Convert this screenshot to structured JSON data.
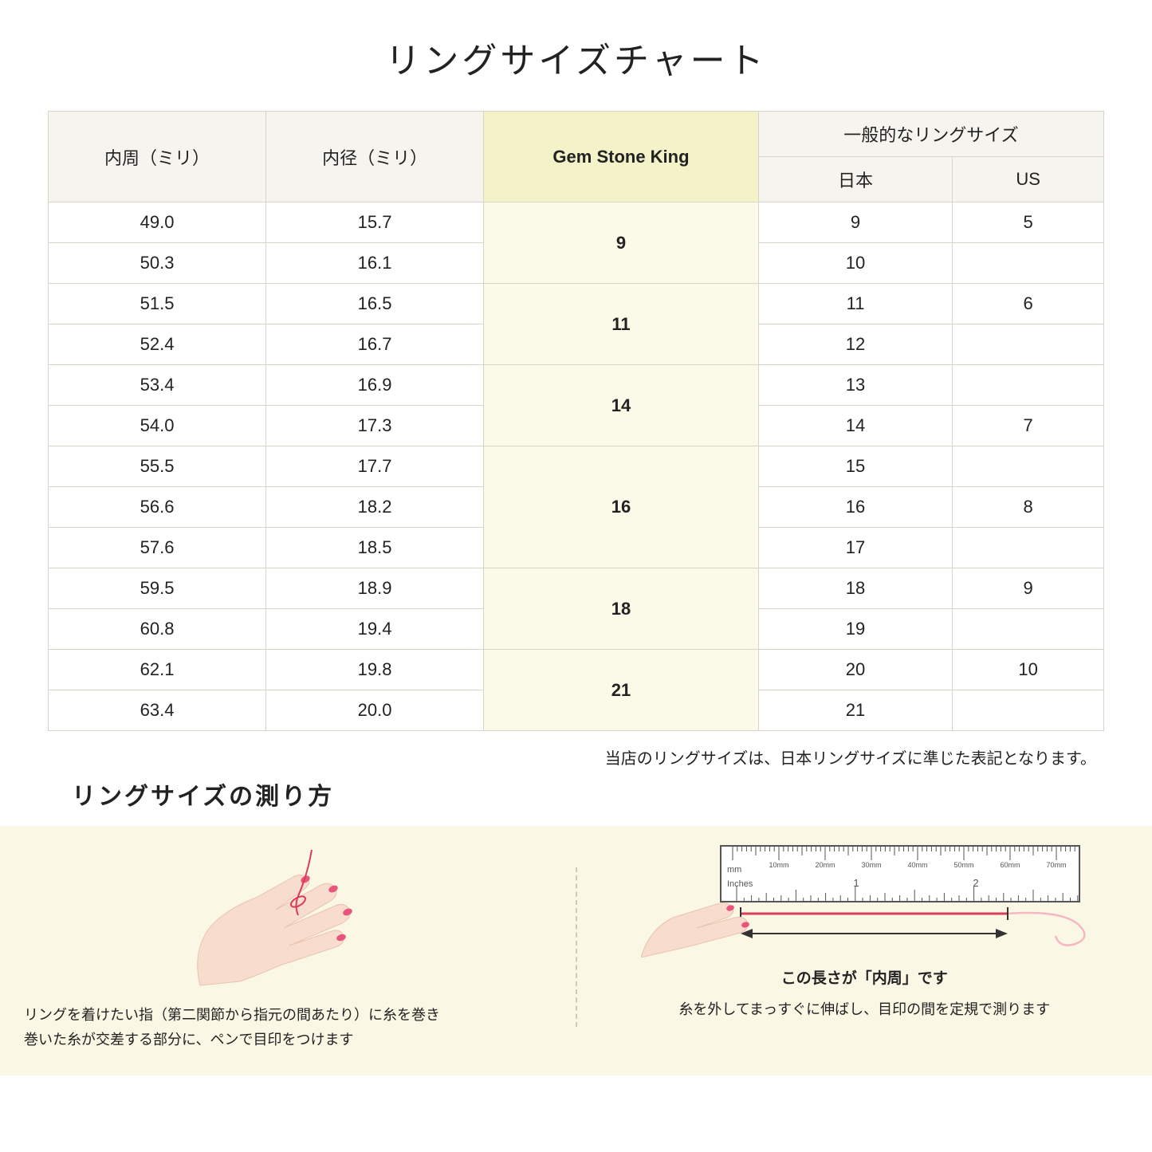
{
  "title": "リングサイズチャート",
  "headers": {
    "col1": "内周（ミリ）",
    "col2": "内径（ミリ）",
    "col3": "Gem Stone King",
    "col4_group": "一般的なリングサイズ",
    "col4a": "日本",
    "col4b": "US"
  },
  "rows": [
    {
      "c": "49.0",
      "d": "15.7",
      "g": "9",
      "gspan": 2,
      "j": "9",
      "u": "5"
    },
    {
      "c": "50.3",
      "d": "16.1",
      "j": "10",
      "u": ""
    },
    {
      "c": "51.5",
      "d": "16.5",
      "g": "11",
      "gspan": 2,
      "j": "11",
      "u": "6"
    },
    {
      "c": "52.4",
      "d": "16.7",
      "j": "12",
      "u": ""
    },
    {
      "c": "53.4",
      "d": "16.9",
      "g": "14",
      "gspan": 2,
      "j": "13",
      "u": ""
    },
    {
      "c": "54.0",
      "d": "17.3",
      "j": "14",
      "u": "7"
    },
    {
      "c": "55.5",
      "d": "17.7",
      "g": "16",
      "gspan": 3,
      "j": "15",
      "u": ""
    },
    {
      "c": "56.6",
      "d": "18.2",
      "j": "16",
      "u": "8"
    },
    {
      "c": "57.6",
      "d": "18.5",
      "j": "17",
      "u": ""
    },
    {
      "c": "59.5",
      "d": "18.9",
      "g": "18",
      "gspan": 2,
      "j": "18",
      "u": "9"
    },
    {
      "c": "60.8",
      "d": "19.4",
      "j": "19",
      "u": ""
    },
    {
      "c": "62.1",
      "d": "19.8",
      "g": "21",
      "gspan": 2,
      "j": "20",
      "u": "10"
    },
    {
      "c": "63.4",
      "d": "20.0",
      "j": "21",
      "u": ""
    }
  ],
  "note": "当店のリングサイズは、日本リングサイズに準じた表記となります。",
  "subtitle": "リングサイズの測り方",
  "step1": "リングを着けたい指（第二関節から指元の間あたり）に糸を巻き\n巻いた糸が交差する部分に、ペンで目印をつけます",
  "arrow_label": "この長さが「内周」です",
  "step2": "糸を外してまっすぐに伸ばし、目印の間を定規で測ります",
  "ruler": {
    "mm_label": "mm",
    "in_label": "Inches",
    "mm_ticks": [
      "10mm",
      "20mm",
      "30mm",
      "40mm",
      "50mm",
      "60mm",
      "70mm"
    ]
  },
  "colors": {
    "hand_fill": "#f8dccd",
    "nail": "#e8547a",
    "thread": "#d93b5a",
    "ruler_border": "#555555",
    "bg_panel": "#faf7e4"
  }
}
